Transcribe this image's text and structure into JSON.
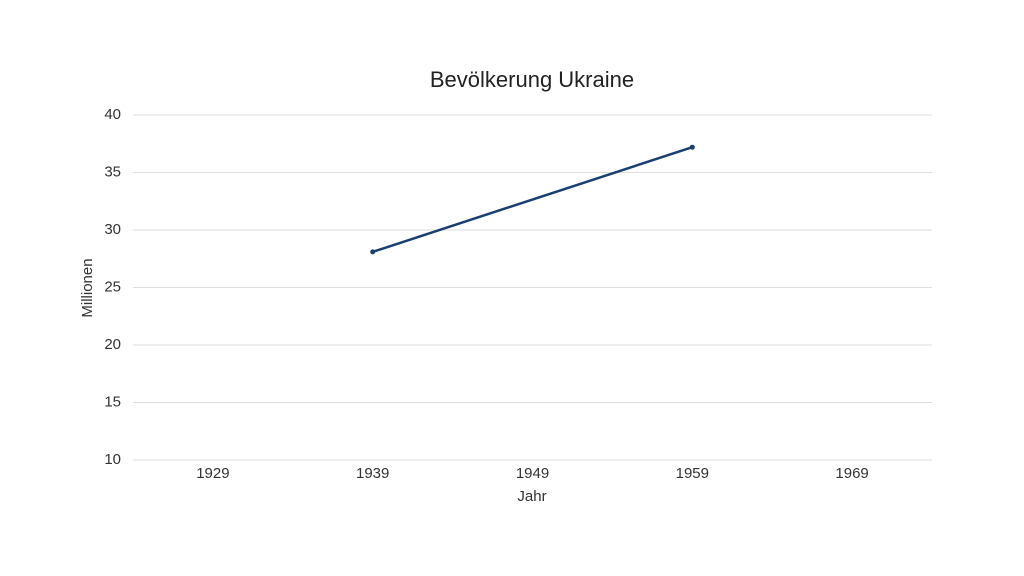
{
  "chart_data": {
    "type": "line",
    "title": "Bevölkerung Ukraine",
    "x_label": "Jahr",
    "y_label": "Millionen",
    "x": [
      1939,
      1959
    ],
    "values": [
      28.1,
      37.2
    ],
    "color": "#1a3f73",
    "xlim": [
      1924,
      1974
    ],
    "xticks": [
      1929,
      1939,
      1949,
      1959,
      1969
    ],
    "ylim": [
      10,
      40
    ],
    "yticks": [
      10,
      15,
      20,
      25,
      30,
      35,
      40
    ],
    "grid": true
  }
}
